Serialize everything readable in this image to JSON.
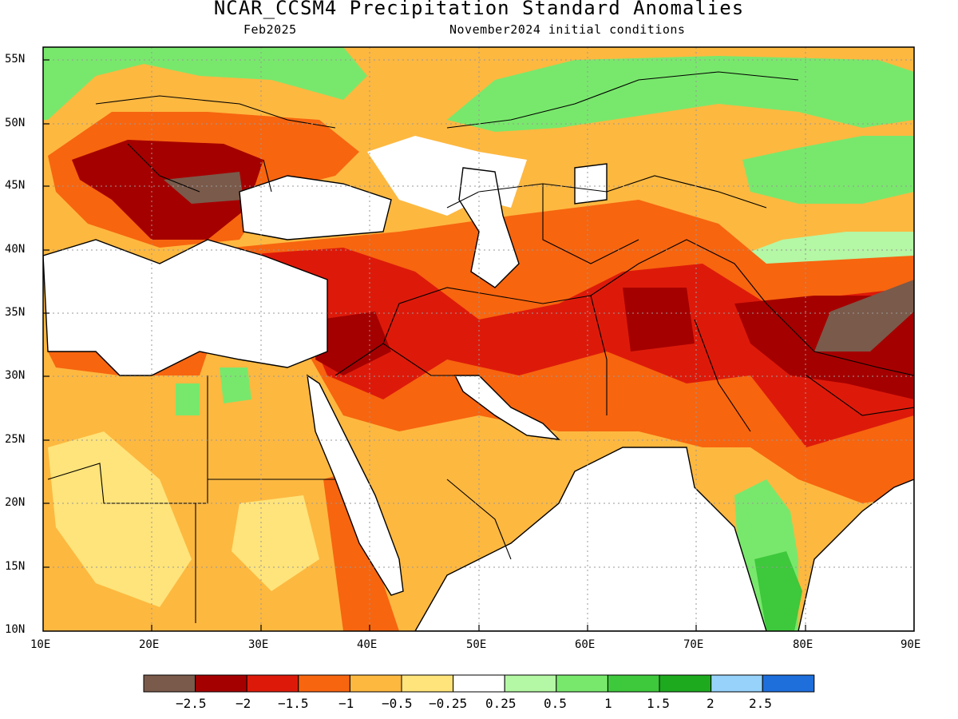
{
  "title": "NCAR_CCSM4 Precipitation Standard Anomalies",
  "subtitle_left": "Feb2025",
  "subtitle_right": "November2024 initial conditions",
  "map": {
    "lon_range": [
      10,
      90
    ],
    "lat_range": [
      10,
      57
    ],
    "lat_labels": [
      {
        "lat": 55,
        "text": "55N"
      },
      {
        "lat": 50,
        "text": "50N"
      },
      {
        "lat": 45,
        "text": "45N"
      },
      {
        "lat": 40,
        "text": "40N"
      },
      {
        "lat": 35,
        "text": "35N"
      },
      {
        "lat": 30,
        "text": "30N"
      },
      {
        "lat": 25,
        "text": "25N"
      },
      {
        "lat": 20,
        "text": "20N"
      },
      {
        "lat": 15,
        "text": "15N"
      },
      {
        "lat": 10,
        "text": "10N"
      }
    ],
    "lon_labels": [
      {
        "lon": 10,
        "text": "10E"
      },
      {
        "lon": 20,
        "text": "20E"
      },
      {
        "lon": 30,
        "text": "30E"
      },
      {
        "lon": 40,
        "text": "40E"
      },
      {
        "lon": 50,
        "text": "50E"
      },
      {
        "lon": 60,
        "text": "60E"
      },
      {
        "lon": 70,
        "text": "70E"
      },
      {
        "lon": 80,
        "text": "80E"
      },
      {
        "lon": 90,
        "text": "90E"
      }
    ],
    "gridlines": "dotted"
  },
  "colorbar": {
    "colors": [
      "#7a5a4a",
      "#a50000",
      "#dd1a0a",
      "#f7650f",
      "#fdb840",
      "#fee47a",
      "#ffffff",
      "#b4f7a4",
      "#78e86c",
      "#3ec83c",
      "#1eaa1e",
      "#96d2fa",
      "#1e6edc"
    ],
    "labels": [
      "−2.5",
      "−2",
      "−1.5",
      "−1",
      "−0.5",
      "−0.25",
      "0.25",
      "0.5",
      "1",
      "1.5",
      "2",
      "2.5"
    ]
  }
}
